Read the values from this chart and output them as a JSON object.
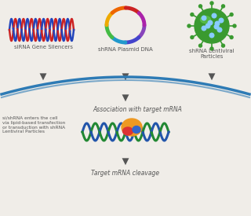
{
  "bg_color": "#f0ede8",
  "arrow_color": "#555555",
  "cell_membrane_color": "#2e7bb5",
  "labels": {
    "sirna": "siRNA Gene Silencers",
    "shrna_plasmid": "shRNA Plasmid DNA",
    "shrna_lentiviral": "shRNA Lentiviral\nParticles",
    "association": "Association with target mRNA",
    "cleavage": "Target mRNA cleavage",
    "cell_entry": "si/shRNA enters the cell\nvia lipid-based transfection\nor transduction with shRNA\nLentiviral Particles"
  },
  "label_fontsize": 5.0,
  "label_color": "#555555"
}
